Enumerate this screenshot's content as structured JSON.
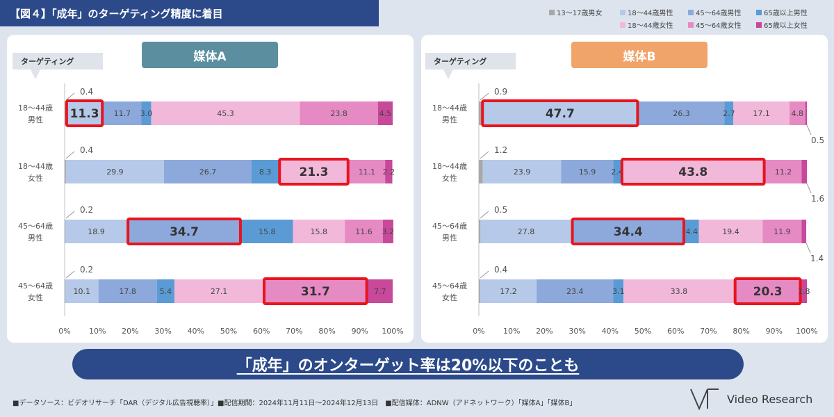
{
  "title": "【図４】「成年」のターゲティング精度に着目",
  "legend": [
    {
      "label": "13～17歳男女",
      "color": "#a8a8a8"
    },
    {
      "label": "18～44歳男性",
      "color": "#b7c9e8"
    },
    {
      "label": "45～64歳男性",
      "color": "#8da9dc"
    },
    {
      "label": "65歳以上男性",
      "color": "#5b9bd5"
    },
    {
      "label": "18～44歳女性",
      "color": "#f2b8da"
    },
    {
      "label": "45～64歳女性",
      "color": "#e68ac4"
    },
    {
      "label": "65歳以上女性",
      "color": "#c8489a"
    }
  ],
  "targeting_label": "ターゲティング",
  "banner": "「成年」のオンターゲット率は20%以下のことも",
  "footer": "■データソース：ビデオリサーチ「DAR（デジタル広告視聴率）」■配信期間：2024年11月11日～2024年12月13日　■配信媒体：ADNW（アドネットワーク）「媒体A」「媒体B」",
  "logo_text": "Video Research",
  "chart_data": [
    {
      "type": "bar",
      "stacked": true,
      "orientation": "horizontal",
      "title": "媒体A",
      "title_color": "#5b8fa0",
      "categories": [
        "18～44歳\n男性",
        "18～44歳\n女性",
        "45～64歳\n男性",
        "45～64歳\n女性"
      ],
      "series": [
        {
          "name": "13～17歳男女",
          "values": [
            0.4,
            0.4,
            0.2,
            0.2
          ]
        },
        {
          "name": "18～44歳男性",
          "values": [
            11.3,
            29.9,
            18.9,
            10.1
          ]
        },
        {
          "name": "45～64歳男性",
          "values": [
            11.7,
            26.7,
            34.7,
            17.8
          ]
        },
        {
          "name": "65歳以上男性",
          "values": [
            3.0,
            8.3,
            15.8,
            5.4
          ]
        },
        {
          "name": "18～44歳女性",
          "values": [
            45.3,
            21.3,
            15.8,
            27.1
          ]
        },
        {
          "name": "45～64歳女性",
          "values": [
            23.8,
            11.1,
            11.6,
            31.7
          ]
        },
        {
          "name": "65歳以上女性",
          "values": [
            4.5,
            2.2,
            3.2,
            7.7
          ]
        }
      ],
      "highlight": [
        1,
        4,
        2,
        5
      ],
      "x_ticks": [
        "0%",
        "10%",
        "20%",
        "30%",
        "40%",
        "50%",
        "60%",
        "70%",
        "80%",
        "90%",
        "100%"
      ],
      "xlim": [
        0,
        100
      ]
    },
    {
      "type": "bar",
      "stacked": true,
      "orientation": "horizontal",
      "title": "媒体B",
      "title_color": "#f0a46a",
      "categories": [
        "18～44歳\n男性",
        "18～44歳\n女性",
        "45～64歳\n男性",
        "45～64歳\n女性"
      ],
      "series": [
        {
          "name": "13～17歳男女",
          "values": [
            0.9,
            1.2,
            0.5,
            0.4
          ]
        },
        {
          "name": "18～44歳男性",
          "values": [
            47.7,
            23.9,
            27.8,
            17.2
          ]
        },
        {
          "name": "45～64歳男性",
          "values": [
            26.3,
            15.9,
            34.4,
            23.4
          ]
        },
        {
          "name": "65歳以上男性",
          "values": [
            2.7,
            2.4,
            4.4,
            3.1
          ]
        },
        {
          "name": "18～44歳女性",
          "values": [
            17.1,
            43.8,
            19.4,
            33.8
          ]
        },
        {
          "name": "45～64歳女性",
          "values": [
            4.8,
            11.2,
            11.9,
            20.3
          ]
        },
        {
          "name": "65歳以上女性",
          "values": [
            0.5,
            1.6,
            1.4,
            1.8
          ]
        }
      ],
      "highlight": [
        1,
        4,
        2,
        5
      ],
      "x_ticks": [
        "0%",
        "10%",
        "20%",
        "30%",
        "40%",
        "50%",
        "60%",
        "70%",
        "80%",
        "90%",
        "100%"
      ],
      "xlim": [
        0,
        100
      ]
    }
  ]
}
